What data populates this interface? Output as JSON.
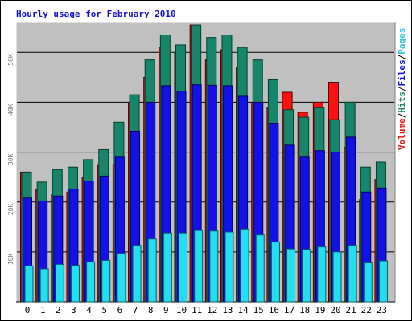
{
  "chart_data": {
    "type": "bar",
    "title": "Hourly usage for February 2010",
    "categories": [
      "0",
      "1",
      "2",
      "3",
      "4",
      "5",
      "6",
      "7",
      "8",
      "9",
      "10",
      "11",
      "12",
      "13",
      "14",
      "15",
      "16",
      "17",
      "18",
      "19",
      "20",
      "21",
      "22",
      "23"
    ],
    "y_ticks": [
      "10K",
      "20K",
      "30K",
      "40K",
      "50K"
    ],
    "ylim": [
      0,
      56000
    ],
    "legend_vertical": [
      {
        "label": "Volume",
        "color": "#e81414"
      },
      {
        "label": "Hits",
        "color": "#1b8a6a"
      },
      {
        "label": "Files",
        "color": "#1010e8"
      },
      {
        "label": "Pages",
        "color": "#25c8e0"
      }
    ],
    "separator": "/",
    "series": [
      {
        "name": "Volume",
        "color": "#ff1010",
        "values": [
          26000,
          22500,
          21500,
          22000,
          25000,
          27500,
          27500,
          40000,
          45000,
          51000,
          50000,
          55500,
          48500,
          50500,
          47000,
          40000,
          39000,
          42000,
          38000,
          40000,
          44000,
          31000,
          20500,
          24500
        ]
      },
      {
        "name": "Hits",
        "color": "#16856a",
        "values": [
          26000,
          24000,
          26500,
          27000,
          28500,
          30500,
          36000,
          41500,
          48500,
          53500,
          51500,
          55500,
          53000,
          53500,
          51000,
          48500,
          44500,
          38500,
          37000,
          39000,
          36500,
          40000,
          27000,
          28000
        ]
      },
      {
        "name": "Files",
        "color": "#1212e6",
        "values": [
          20800,
          20200,
          21200,
          22600,
          24200,
          25200,
          29000,
          34200,
          40000,
          43300,
          42200,
          43500,
          43400,
          43300,
          41200,
          40000,
          35800,
          31400,
          29000,
          30300,
          30000,
          33000,
          22000,
          22800
        ]
      },
      {
        "name": "Pages",
        "color": "#22dff0",
        "values": [
          7200,
          6600,
          7500,
          7300,
          8000,
          8300,
          9700,
          11300,
          12600,
          13800,
          13800,
          14300,
          14200,
          14000,
          14600,
          13400,
          12000,
          10600,
          10500,
          11000,
          10000,
          11300,
          7800,
          8200
        ]
      }
    ]
  }
}
